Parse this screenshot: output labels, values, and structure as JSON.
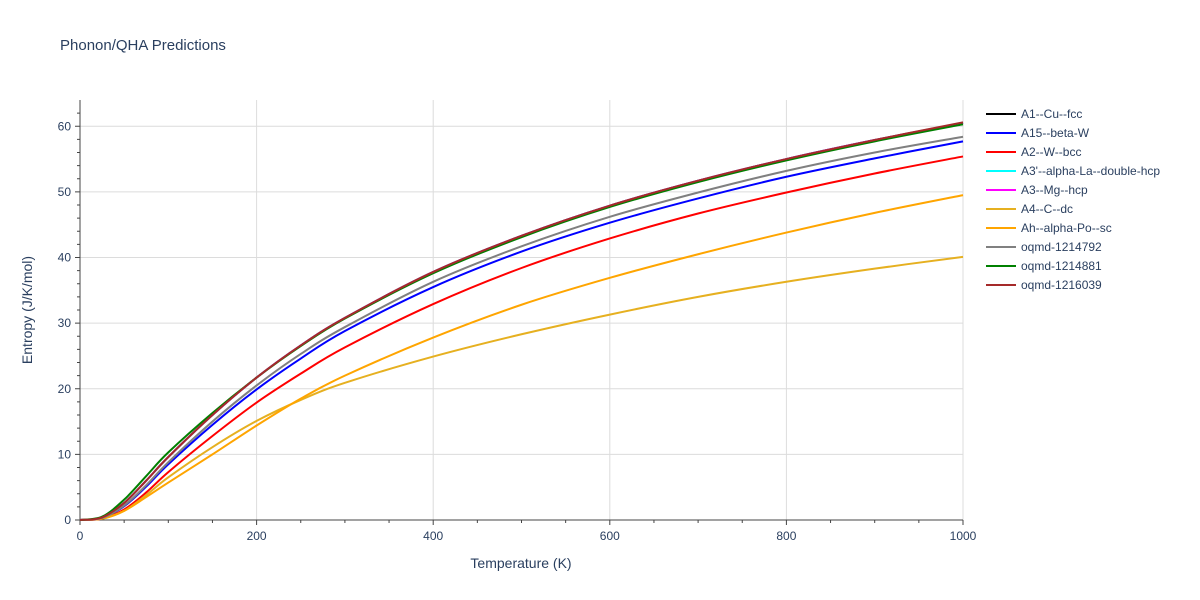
{
  "chart_data": {
    "type": "line",
    "title": "Phonon/QHA Predictions",
    "xlabel": "Temperature (K)",
    "ylabel": "Entropy (J/K/mol)",
    "xlim": [
      0,
      1000
    ],
    "ylim": [
      0,
      64
    ],
    "xticks": [
      0,
      200,
      400,
      600,
      800,
      1000
    ],
    "yticks": [
      0,
      10,
      20,
      30,
      40,
      50,
      60
    ],
    "grid": true,
    "legend_position": "right",
    "x": [
      0,
      25,
      50,
      75,
      100,
      150,
      200,
      250,
      300,
      400,
      500,
      600,
      700,
      800,
      900,
      1000
    ],
    "series": [
      {
        "name": "A1--Cu--fcc",
        "color": "#000000",
        "values": [
          0,
          0.4,
          2.6,
          6.0,
          9.6,
          16.0,
          21.7,
          26.6,
          30.8,
          37.8,
          43.3,
          47.9,
          51.7,
          55.0,
          57.9,
          60.5
        ]
      },
      {
        "name": "A15--beta-W",
        "color": "#0000ff",
        "values": [
          0,
          0.3,
          2.1,
          5.1,
          8.5,
          14.5,
          19.9,
          24.6,
          28.8,
          35.5,
          40.9,
          45.3,
          49.0,
          52.3,
          55.1,
          57.7
        ]
      },
      {
        "name": "A2--W--bcc",
        "color": "#ff0000",
        "values": [
          0,
          0.2,
          1.6,
          4.2,
          7.3,
          12.8,
          17.9,
          22.3,
          26.3,
          32.9,
          38.4,
          42.9,
          46.7,
          49.9,
          52.8,
          55.4
        ]
      },
      {
        "name": "A3'--alpha-La--double-hcp",
        "color": "#00ffff",
        "values": [
          0,
          0.4,
          2.6,
          6.0,
          9.6,
          16.0,
          21.7,
          26.6,
          30.8,
          37.8,
          43.3,
          47.9,
          51.7,
          55.0,
          57.9,
          60.5
        ]
      },
      {
        "name": "A3--Mg--hcp",
        "color": "#ff00ff",
        "values": [
          0,
          0.4,
          2.6,
          6.0,
          9.6,
          16.0,
          21.7,
          26.6,
          30.8,
          37.8,
          43.3,
          47.9,
          51.7,
          55.0,
          57.9,
          60.5
        ]
      },
      {
        "name": "A4--C--dc",
        "color": "#e6b020",
        "values": [
          0,
          0.2,
          1.4,
          3.8,
          6.5,
          11.1,
          15.1,
          18.3,
          20.9,
          24.9,
          28.3,
          31.3,
          34.0,
          36.3,
          38.3,
          40.1
        ]
      },
      {
        "name": "Ah--alpha-Po--sc",
        "color": "#ffa500",
        "values": [
          0,
          0.2,
          1.4,
          3.5,
          5.7,
          10.0,
          14.4,
          18.5,
          22.0,
          27.8,
          32.8,
          36.9,
          40.5,
          43.8,
          46.8,
          49.5
        ]
      },
      {
        "name": "oqmd-1214792",
        "color": "#808080",
        "values": [
          0,
          0.3,
          2.2,
          5.3,
          8.8,
          15.0,
          20.5,
          25.3,
          29.4,
          36.3,
          41.7,
          46.2,
          49.9,
          53.2,
          56.0,
          58.4
        ]
      },
      {
        "name": "oqmd-1214881",
        "color": "#008000",
        "values": [
          0,
          0.5,
          3.1,
          6.7,
          10.3,
          16.3,
          21.7,
          26.5,
          30.7,
          37.6,
          43.1,
          47.7,
          51.5,
          54.8,
          57.7,
          60.3
        ]
      },
      {
        "name": "oqmd-1216039",
        "color": "#a52a2a",
        "values": [
          0,
          0.4,
          2.6,
          6.0,
          9.6,
          16.0,
          21.7,
          26.6,
          30.8,
          37.8,
          43.3,
          47.9,
          51.7,
          55.0,
          57.9,
          60.6
        ]
      }
    ]
  }
}
